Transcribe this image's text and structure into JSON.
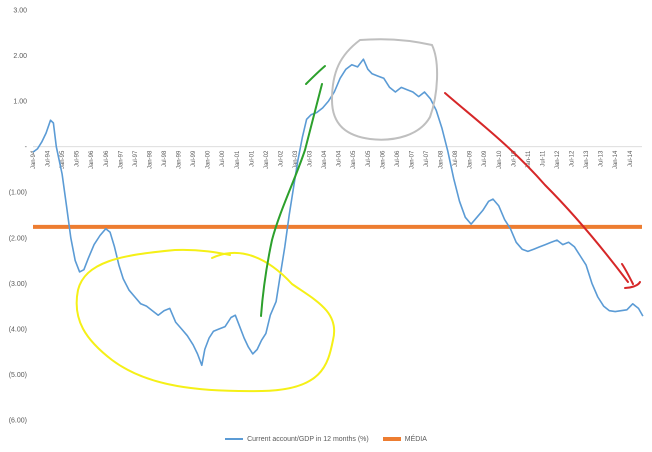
{
  "chart_data": {
    "type": "line",
    "ylim": [
      -6,
      3
    ],
    "yticks": [
      3,
      2,
      1,
      0,
      -1,
      -2,
      -3,
      -4,
      -5,
      -6
    ],
    "ytick_labels": [
      "3.00",
      "2.00",
      "1.00",
      "-",
      "(1.00)",
      "(2.00)",
      "(3.00)",
      "(4.00)",
      "(5.00)",
      "(6.00)"
    ],
    "x_start_year": 1994,
    "x_end_year": 2014,
    "x_tick_labels": [
      "Jan-94",
      "Jul-94",
      "Jan-95",
      "Jul-95",
      "Jan-96",
      "Jul-96",
      "Jan-97",
      "Jul-97",
      "Jan-98",
      "Jul-98",
      "Jan-99",
      "Jul-99",
      "Jan-00",
      "Jul-00",
      "Jan-01",
      "Jul-01",
      "Jan-02",
      "Jul-02",
      "Jan-03",
      "Jul-03",
      "Jan-04",
      "Jul-04",
      "Jan-05",
      "Jul-05",
      "Jan-06",
      "Jul-06",
      "Jan-07",
      "Jul-07",
      "Jan-08",
      "Jul-08",
      "Jan-09",
      "Jul-09",
      "Jan-10",
      "Jul-10",
      "Jan-11",
      "Jul-11",
      "Jan-12",
      "Jul-12",
      "Jan-13",
      "Jul-13",
      "Jan-14",
      "Jul-14"
    ],
    "series": [
      {
        "name": "Current account/GDP in 12 months (%)",
        "color": "#5b9bd5",
        "points": [
          [
            1994.0,
            -0.12
          ],
          [
            1994.15,
            -0.05
          ],
          [
            1994.3,
            0.1
          ],
          [
            1994.45,
            0.3
          ],
          [
            1994.6,
            0.58
          ],
          [
            1994.7,
            0.52
          ],
          [
            1994.8,
            0.0
          ],
          [
            1995.0,
            -0.6
          ],
          [
            1995.15,
            -1.3
          ],
          [
            1995.3,
            -2.0
          ],
          [
            1995.45,
            -2.5
          ],
          [
            1995.6,
            -2.75
          ],
          [
            1995.75,
            -2.7
          ],
          [
            1995.9,
            -2.45
          ],
          [
            1996.1,
            -2.15
          ],
          [
            1996.3,
            -1.95
          ],
          [
            1996.5,
            -1.8
          ],
          [
            1996.65,
            -1.88
          ],
          [
            1996.8,
            -2.2
          ],
          [
            1996.95,
            -2.6
          ],
          [
            1997.1,
            -2.9
          ],
          [
            1997.3,
            -3.15
          ],
          [
            1997.5,
            -3.3
          ],
          [
            1997.7,
            -3.45
          ],
          [
            1997.9,
            -3.5
          ],
          [
            1998.1,
            -3.6
          ],
          [
            1998.3,
            -3.7
          ],
          [
            1998.5,
            -3.6
          ],
          [
            1998.7,
            -3.55
          ],
          [
            1998.9,
            -3.85
          ],
          [
            1999.1,
            -4.0
          ],
          [
            1999.3,
            -4.15
          ],
          [
            1999.5,
            -4.35
          ],
          [
            1999.65,
            -4.55
          ],
          [
            1999.8,
            -4.8
          ],
          [
            1999.9,
            -4.45
          ],
          [
            2000.05,
            -4.2
          ],
          [
            2000.2,
            -4.05
          ],
          [
            2000.4,
            -4.0
          ],
          [
            2000.6,
            -3.95
          ],
          [
            2000.8,
            -3.75
          ],
          [
            2000.95,
            -3.7
          ],
          [
            2001.1,
            -3.95
          ],
          [
            2001.25,
            -4.2
          ],
          [
            2001.4,
            -4.4
          ],
          [
            2001.55,
            -4.55
          ],
          [
            2001.7,
            -4.45
          ],
          [
            2001.85,
            -4.25
          ],
          [
            2002.0,
            -4.1
          ],
          [
            2002.15,
            -3.7
          ],
          [
            2002.35,
            -3.4
          ],
          [
            2002.5,
            -2.8
          ],
          [
            2002.65,
            -2.2
          ],
          [
            2002.8,
            -1.5
          ],
          [
            2002.95,
            -0.9
          ],
          [
            2003.1,
            -0.3
          ],
          [
            2003.25,
            0.2
          ],
          [
            2003.4,
            0.6
          ],
          [
            2003.55,
            0.7
          ],
          [
            2003.75,
            0.75
          ],
          [
            2003.95,
            0.85
          ],
          [
            2004.15,
            1.0
          ],
          [
            2004.35,
            1.2
          ],
          [
            2004.55,
            1.5
          ],
          [
            2004.75,
            1.7
          ],
          [
            2004.95,
            1.8
          ],
          [
            2005.15,
            1.75
          ],
          [
            2005.35,
            1.92
          ],
          [
            2005.5,
            1.7
          ],
          [
            2005.65,
            1.6
          ],
          [
            2005.85,
            1.55
          ],
          [
            2006.05,
            1.5
          ],
          [
            2006.25,
            1.3
          ],
          [
            2006.45,
            1.2
          ],
          [
            2006.65,
            1.3
          ],
          [
            2006.85,
            1.25
          ],
          [
            2007.05,
            1.2
          ],
          [
            2007.25,
            1.1
          ],
          [
            2007.45,
            1.2
          ],
          [
            2007.65,
            1.05
          ],
          [
            2007.85,
            0.8
          ],
          [
            2008.05,
            0.4
          ],
          [
            2008.25,
            -0.1
          ],
          [
            2008.45,
            -0.7
          ],
          [
            2008.65,
            -1.2
          ],
          [
            2008.85,
            -1.55
          ],
          [
            2009.05,
            -1.7
          ],
          [
            2009.25,
            -1.55
          ],
          [
            2009.45,
            -1.4
          ],
          [
            2009.65,
            -1.2
          ],
          [
            2009.8,
            -1.15
          ],
          [
            2010.0,
            -1.3
          ],
          [
            2010.2,
            -1.6
          ],
          [
            2010.4,
            -1.8
          ],
          [
            2010.6,
            -2.1
          ],
          [
            2010.8,
            -2.25
          ],
          [
            2011.0,
            -2.3
          ],
          [
            2011.2,
            -2.25
          ],
          [
            2011.4,
            -2.2
          ],
          [
            2011.6,
            -2.15
          ],
          [
            2011.8,
            -2.1
          ],
          [
            2012.0,
            -2.05
          ],
          [
            2012.2,
            -2.15
          ],
          [
            2012.4,
            -2.1
          ],
          [
            2012.6,
            -2.2
          ],
          [
            2012.8,
            -2.4
          ],
          [
            2013.0,
            -2.6
          ],
          [
            2013.2,
            -3.0
          ],
          [
            2013.4,
            -3.3
          ],
          [
            2013.6,
            -3.5
          ],
          [
            2013.8,
            -3.6
          ],
          [
            2014.0,
            -3.62
          ],
          [
            2014.2,
            -3.6
          ],
          [
            2014.4,
            -3.58
          ],
          [
            2014.6,
            -3.45
          ],
          [
            2014.8,
            -3.55
          ],
          [
            2014.95,
            -3.72
          ]
        ]
      },
      {
        "name": "MÉDIA",
        "color": "#ed7d31",
        "constant": -1.76
      }
    ],
    "annotations": [
      {
        "name": "yellow-ellipse",
        "color": "#f5f017"
      },
      {
        "name": "green-line",
        "color": "#2ca02c"
      },
      {
        "name": "gray-ellipse",
        "color": "#bfbfbf"
      },
      {
        "name": "red-line",
        "color": "#d62728"
      }
    ],
    "grid": false,
    "legend_position": "bottom"
  }
}
